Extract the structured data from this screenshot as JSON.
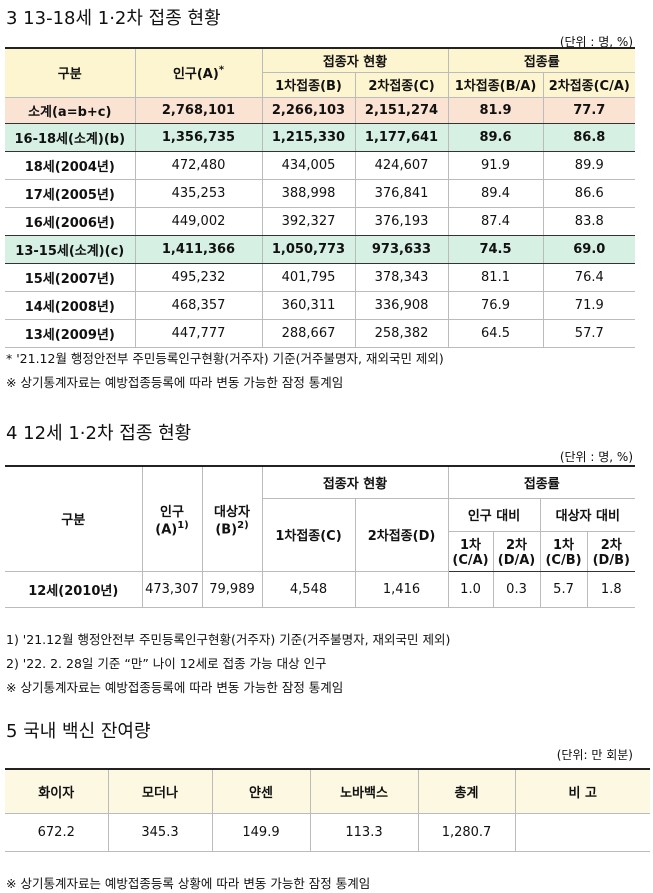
{
  "section3": {
    "title": "3  13-18세 1·2차 접종 현황",
    "unit": "(단위 : 명, %)",
    "header": {
      "category": "구분",
      "population": "인구(A)",
      "population_mark": "*",
      "vaccinated": "접종자 현황",
      "first": "1차접종(B)",
      "second": "2차접종(C)",
      "rate": "접종률",
      "first_rate": "1차접종(B/A)",
      "second_rate": "2차접종(C/A)"
    },
    "rows": [
      [
        "소계(a=b+c)",
        "2,768,101",
        "2,266,103",
        "2,151,274",
        "81.9",
        "77.7"
      ],
      [
        "16-18세(소계)(b)",
        "1,356,735",
        "1,215,330",
        "1,177,641",
        "89.6",
        "86.8"
      ],
      [
        "18세(2004년)",
        "472,480",
        "434,005",
        "424,607",
        "91.9",
        "89.9"
      ],
      [
        "17세(2005년)",
        "435,253",
        "388,998",
        "376,841",
        "89.4",
        "86.6"
      ],
      [
        "16세(2006년)",
        "449,002",
        "392,327",
        "376,193",
        "87.4",
        "83.8"
      ],
      [
        "13-15세(소계)(c)",
        "1,411,366",
        "1,050,773",
        "973,633",
        "74.5",
        "69.0"
      ],
      [
        "15세(2007년)",
        "495,232",
        "401,795",
        "378,343",
        "81.1",
        "76.4"
      ],
      [
        "14세(2008년)",
        "468,357",
        "360,311",
        "336,908",
        "76.9",
        "71.9"
      ],
      [
        "13세(2009년)",
        "447,777",
        "288,667",
        "258,382",
        "64.5",
        "57.7"
      ]
    ],
    "notes": [
      "* '21.12월 행정안전부 주민등록인구현황(거주자) 기준(거주불명자, 재외국민 제외)",
      "※ 상기통계자료는 예방접종등록에 따라 변동 가능한 잠정 통계임"
    ]
  },
  "section4": {
    "title": "4  12세 1·2차 접종 현황",
    "unit": "(단위 : 명, %)",
    "header": {
      "category": "구분",
      "population": [
        "인구",
        "(A)"
      ],
      "population_mark": "1)",
      "target": [
        "대상자",
        "(B)"
      ],
      "target_mark": "2)",
      "vaccinated": "접종자 현황",
      "first": "1차접종(C)",
      "second": "2차접종(D)",
      "rate": "접종률",
      "vs_population": "인구 대비",
      "vs_target": "대상자 대비",
      "sub": [
        [
          "1차",
          "(C/A)"
        ],
        [
          "2차",
          "(D/A)"
        ],
        [
          "1차",
          "(C/B)"
        ],
        [
          "2차",
          "(D/B)"
        ]
      ]
    },
    "row": [
      "12세(2010년)",
      "473,307",
      "79,989",
      "4,548",
      "1,416",
      "1.0",
      "0.3",
      "5.7",
      "1.8"
    ],
    "notes": [
      "1) '21.12월 행정안전부 주민등록인구현황(거주자) 기준(거주불명자, 재외국민 제외)",
      "2) '22. 2. 28일 기준 “만” 나이 12세로 접종 가능 대상 인구",
      "※ 상기통계자료는 예방접종등록에 따라 변동 가능한 잠정 통계임"
    ]
  },
  "section5": {
    "title": "5  국내 백신 잔여량",
    "unit": "(단위: 만 회분)",
    "header": [
      "화이자",
      "모더나",
      "얀센",
      "노바백스",
      "총계",
      "비 고"
    ],
    "row": [
      "672.2",
      "345.3",
      "149.9",
      "113.3",
      "1,280.7"
    ],
    "notes": [
      "※ 상기통계자료는 예방접종등록 상황에 따라 변동 가능한 잠정 통계임"
    ]
  }
}
